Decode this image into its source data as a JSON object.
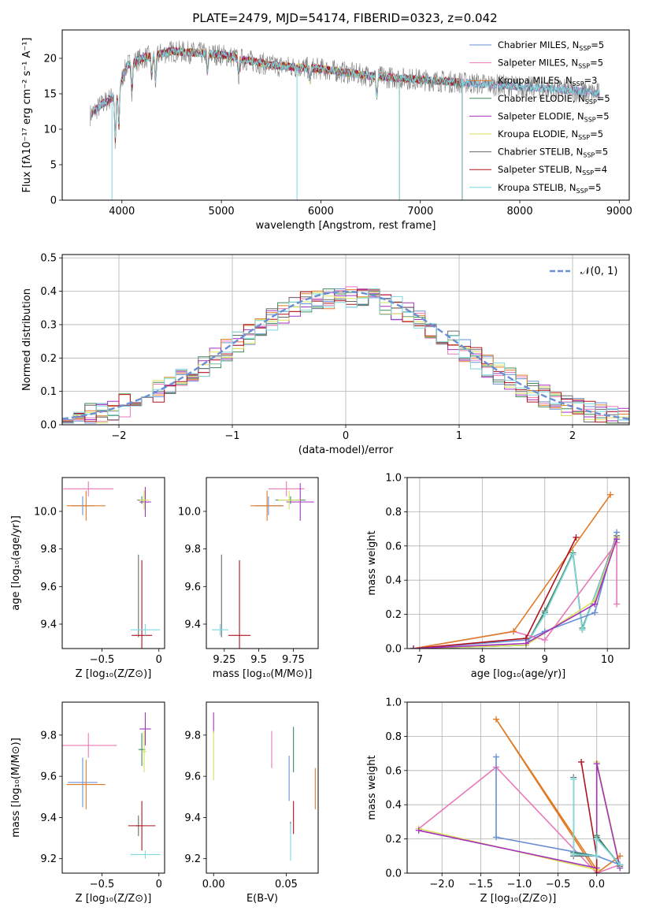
{
  "title": "PLATE=2479, MJD=54174, FIBERID=0323, z=0.042",
  "palette": [
    "#6a8fd4",
    "#e978b8",
    "#e07b25",
    "#3f8a5a",
    "#a531bd",
    "#d9e15a",
    "#6a6a6a",
    "#b0131f",
    "#7fd7e0"
  ],
  "ssp_models": [
    {
      "label": "Chabrier MILES, N",
      "nssp": "=5"
    },
    {
      "label": "Salpeter MILES, N",
      "nssp": "=5"
    },
    {
      "label": "Kroupa MILES, N",
      "nssp": "=3"
    },
    {
      "label": "Chabrier ELODIE, N",
      "nssp": "=5"
    },
    {
      "label": "Salpeter ELODIE, N",
      "nssp": "=5"
    },
    {
      "label": "Kroupa ELODIE, N",
      "nssp": "=5"
    },
    {
      "label": "Chabrier STELIB, N",
      "nssp": "=5"
    },
    {
      "label": "Salpeter STELIB, N",
      "nssp": "=4"
    },
    {
      "label": "Kroupa STELIB, N",
      "nssp": "=5"
    }
  ],
  "nssp_sub": "SSP",
  "chart_data": [
    {
      "id": "spectrum",
      "type": "line",
      "xlabel": "wavelength [Angstrom, rest frame]",
      "ylabel": "Flux [fλ10⁻¹⁷ erg cm⁻² s⁻¹ A⁻¹]",
      "xlim": [
        3400,
        9100
      ],
      "ylim": [
        0,
        24
      ],
      "xticks": [
        4000,
        5000,
        6000,
        7000,
        8000,
        9000
      ],
      "yticks": [
        0,
        5,
        10,
        15,
        20
      ],
      "continuum_anchors": [
        [
          3680,
          12
        ],
        [
          3800,
          13.5
        ],
        [
          3950,
          15
        ],
        [
          4050,
          19
        ],
        [
          4200,
          20
        ],
        [
          4500,
          21
        ],
        [
          5000,
          20.5
        ],
        [
          5500,
          19
        ],
        [
          6000,
          18.5
        ],
        [
          6500,
          17.5
        ],
        [
          7000,
          17
        ],
        [
          7500,
          16.5
        ],
        [
          8000,
          16
        ],
        [
          8500,
          15.5
        ],
        [
          8800,
          15
        ]
      ],
      "model_ranges": [
        [
          3700,
          8800
        ],
        [
          3700,
          8800
        ],
        [
          3700,
          7420
        ],
        [
          3700,
          7420
        ],
        [
          3700,
          6790
        ],
        [
          3900,
          6790
        ],
        [
          3700,
          8800
        ],
        [
          3700,
          7420
        ],
        [
          3700,
          8800
        ]
      ],
      "dropouts": [
        [
          3900,
          0
        ],
        [
          5760,
          0
        ],
        [
          6790,
          0
        ],
        [
          7420,
          0
        ]
      ]
    },
    {
      "id": "residuals",
      "type": "step-histogram",
      "xlabel": "(data-model)/error",
      "ylabel": "Normed distribution",
      "xlim": [
        -2.5,
        2.5
      ],
      "ylim": [
        0,
        0.51
      ],
      "xticks": [
        -2,
        -1,
        0,
        1,
        2
      ],
      "yticks": [
        0.0,
        0.1,
        0.2,
        0.3,
        0.4,
        0.5
      ],
      "bin_width": 0.1,
      "legend": "𝒩(0, 1)",
      "reference_curve": "gaussian",
      "reference_sigma": 1
    },
    {
      "id": "age_vs_Z",
      "type": "errorbar",
      "xlabel": "Z [log₁₀(Z/Z⊙)]",
      "ylabel": "age  [log₁₀(age/yr)]",
      "xlim": [
        -0.85,
        0.05
      ],
      "ylim": [
        9.27,
        10.18
      ],
      "xticks": [
        -0.5,
        0.0
      ],
      "yticks": [
        9.4,
        9.6,
        9.8,
        10.0
      ],
      "points": [
        {
          "x": -0.67,
          "y": 10.03,
          "xerr": 0.1,
          "yerr": 0.05,
          "c": 0
        },
        {
          "x": -0.62,
          "y": 10.12,
          "xerr": 0.22,
          "yerr": 0.04,
          "c": 1
        },
        {
          "x": -0.64,
          "y": 10.03,
          "xerr": 0.17,
          "yerr": 0.08,
          "c": 2
        },
        {
          "x": -0.15,
          "y": 10.06,
          "xerr": 0.04,
          "yerr": 0.02,
          "c": 3
        },
        {
          "x": -0.12,
          "y": 10.05,
          "xerr": 0.05,
          "yerr": 0.08,
          "c": 4
        },
        {
          "x": -0.13,
          "y": 10.06,
          "xerr": 0.04,
          "yerr": 0.05,
          "c": 5
        },
        {
          "x": -0.18,
          "y": 9.55,
          "xerr": 0.0,
          "yerr": 0.22,
          "c": 6
        },
        {
          "x": -0.15,
          "y": 9.34,
          "xerr": 0.09,
          "yerr": 0.4,
          "c": 7
        },
        {
          "x": -0.12,
          "y": 9.37,
          "xerr": 0.13,
          "yerr": 0.03,
          "c": 8
        }
      ]
    },
    {
      "id": "age_vs_mass",
      "type": "errorbar",
      "xlabel": "mass [log₁₀(M/M⊙)]",
      "ylabel": "",
      "xlim": [
        9.12,
        9.93
      ],
      "ylim": [
        9.27,
        10.18
      ],
      "xticks": [
        9.25,
        9.5,
        9.75
      ],
      "yticks": [
        9.4,
        9.6,
        9.8,
        10.0
      ],
      "points": [
        {
          "x": 9.57,
          "y": 10.03,
          "xerr": 0.1,
          "yerr": 0.05,
          "c": 0
        },
        {
          "x": 9.7,
          "y": 10.12,
          "xerr": 0.13,
          "yerr": 0.04,
          "c": 1
        },
        {
          "x": 9.56,
          "y": 10.03,
          "xerr": 0.12,
          "yerr": 0.08,
          "c": 2
        },
        {
          "x": 9.73,
          "y": 10.06,
          "xerr": 0.11,
          "yerr": 0.02,
          "c": 3
        },
        {
          "x": 9.8,
          "y": 10.05,
          "xerr": 0.1,
          "yerr": 0.1,
          "c": 4
        },
        {
          "x": 9.72,
          "y": 10.06,
          "xerr": 0.08,
          "yerr": 0.05,
          "c": 5
        },
        {
          "x": 9.23,
          "y": 9.55,
          "xerr": 0.0,
          "yerr": 0.22,
          "c": 6
        },
        {
          "x": 9.36,
          "y": 9.34,
          "xerr": 0.08,
          "yerr": 0.4,
          "c": 7
        },
        {
          "x": 9.22,
          "y": 9.37,
          "xerr": 0.06,
          "yerr": 0.03,
          "c": 8
        }
      ]
    },
    {
      "id": "weight_vs_age",
      "type": "line",
      "xlabel": "age  [log₁₀(age/yr)]",
      "ylabel": "mass weight",
      "xlim": [
        6.8,
        10.35
      ],
      "ylim": [
        0,
        1.0
      ],
      "xticks": [
        7,
        8,
        9,
        10
      ],
      "yticks": [
        0.0,
        0.2,
        0.4,
        0.6,
        0.8,
        1.0
      ],
      "series": [
        {
          "c": 6,
          "x": [
            6.9,
            8.7,
            9.0,
            9.45,
            9.6,
            10.15
          ],
          "y": [
            0.0,
            0.02,
            0.22,
            0.55,
            0.11,
            0.66
          ]
        },
        {
          "c": 3,
          "x": [
            6.9,
            8.7,
            9.0,
            9.45,
            9.6,
            10.15
          ],
          "y": [
            0.0,
            0.02,
            0.21,
            0.56,
            0.12,
            0.64
          ]
        },
        {
          "c": 8,
          "x": [
            6.9,
            8.7,
            9.0,
            9.45,
            9.6,
            10.15
          ],
          "y": [
            0.0,
            0.02,
            0.2,
            0.55,
            0.11,
            0.65
          ]
        },
        {
          "c": 0,
          "x": [
            6.9,
            8.7,
            9.0,
            9.8,
            10.15
          ],
          "y": [
            0.0,
            0.05,
            0.1,
            0.21,
            0.68
          ]
        },
        {
          "c": 1,
          "x": [
            6.9,
            8.5,
            9.0,
            10.15,
            10.15
          ],
          "y": [
            0.0,
            0.1,
            0.05,
            0.62,
            0.26
          ]
        },
        {
          "c": 2,
          "x": [
            6.9,
            8.5,
            10.05
          ],
          "y": [
            0.0,
            0.1,
            0.9
          ]
        },
        {
          "c": 7,
          "x": [
            6.9,
            8.7,
            9.5
          ],
          "y": [
            0.0,
            0.06,
            0.65
          ]
        },
        {
          "c": 5,
          "x": [
            6.9,
            8.7,
            9.8,
            10.15
          ],
          "y": [
            0.0,
            0.02,
            0.28,
            0.65
          ]
        },
        {
          "c": 4,
          "x": [
            6.9,
            8.7,
            9.8,
            10.15
          ],
          "y": [
            0.0,
            0.03,
            0.26,
            0.64
          ]
        }
      ]
    },
    {
      "id": "mass_vs_Z",
      "type": "errorbar",
      "xlabel": "Z [log₁₀(Z/Z⊙)]",
      "ylabel": "mass [log₁₀(M/M⊙)]",
      "xlim": [
        -0.85,
        0.05
      ],
      "ylim": [
        9.13,
        9.96
      ],
      "xticks": [
        -0.5,
        0.0
      ],
      "yticks": [
        9.2,
        9.4,
        9.6,
        9.8
      ],
      "points": [
        {
          "x": -0.67,
          "y": 9.57,
          "xerr": 0.13,
          "yerr": 0.12,
          "c": 0
        },
        {
          "x": -0.62,
          "y": 9.75,
          "xerr": 0.25,
          "yerr": 0.06,
          "c": 1
        },
        {
          "x": -0.64,
          "y": 9.56,
          "xerr": 0.17,
          "yerr": 0.12,
          "c": 2
        },
        {
          "x": -0.15,
          "y": 9.73,
          "xerr": 0.03,
          "yerr": 0.08,
          "c": 3
        },
        {
          "x": -0.12,
          "y": 9.83,
          "xerr": 0.05,
          "yerr": 0.08,
          "c": 4
        },
        {
          "x": -0.13,
          "y": 9.72,
          "xerr": 0.02,
          "yerr": 0.1,
          "c": 5
        },
        {
          "x": -0.18,
          "y": 9.36,
          "xerr": 0.02,
          "yerr": 0.05,
          "c": 6
        },
        {
          "x": -0.15,
          "y": 9.36,
          "xerr": 0.12,
          "yerr": 0.12,
          "c": 7
        },
        {
          "x": -0.12,
          "y": 9.22,
          "xerr": 0.13,
          "yerr": 0.02,
          "c": 8
        }
      ]
    },
    {
      "id": "mass_vs_ebv",
      "type": "errorbar",
      "xlabel": "E(B-V)",
      "ylabel": "",
      "xlim": [
        -0.005,
        0.072
      ],
      "ylim": [
        9.13,
        9.96
      ],
      "xticks": [
        0.0,
        0.05
      ],
      "yticks": [
        9.2,
        9.4,
        9.6,
        9.8
      ],
      "points": [
        {
          "x": 0.052,
          "y": 9.59,
          "xerr": 0.0,
          "yerr": 0.11,
          "c": 0
        },
        {
          "x": 0.04,
          "y": 9.73,
          "xerr": 0.0,
          "yerr": 0.09,
          "c": 1
        },
        {
          "x": 0.07,
          "y": 9.54,
          "xerr": 0.0,
          "yerr": 0.1,
          "c": 2
        },
        {
          "x": 0.055,
          "y": 9.73,
          "xerr": 0.0,
          "yerr": 0.11,
          "c": 3
        },
        {
          "x": 0.0,
          "y": 9.86,
          "xerr": 0.0,
          "yerr": 0.05,
          "c": 4
        },
        {
          "x": 0.0,
          "y": 9.7,
          "xerr": 0.0,
          "yerr": 0.12,
          "c": 5
        },
        {
          "x": 0.053,
          "y": 9.35,
          "xerr": 0.0,
          "yerr": 0.03,
          "c": 6
        },
        {
          "x": 0.055,
          "y": 9.4,
          "xerr": 0.0,
          "yerr": 0.08,
          "c": 7
        },
        {
          "x": 0.053,
          "y": 9.28,
          "xerr": 0.0,
          "yerr": 0.09,
          "c": 8
        }
      ]
    },
    {
      "id": "weight_vs_Z",
      "type": "line",
      "xlabel": "Z [log₁₀(Z/Z⊙)]",
      "ylabel": "mass weight",
      "xlim": [
        -2.45,
        0.42
      ],
      "ylim": [
        0,
        1.0
      ],
      "xticks": [
        -2.0,
        -1.5,
        -1.0,
        -0.5,
        0.0
      ],
      "yticks": [
        0.0,
        0.2,
        0.4,
        0.6,
        0.8,
        1.0
      ],
      "series": [
        {
          "c": 2,
          "x": [
            0.3,
            0.0,
            -1.3,
            0.0
          ],
          "y": [
            0.1,
            0.0,
            0.9,
            0.02
          ]
        },
        {
          "c": 1,
          "x": [
            -2.3,
            -1.3,
            0.0,
            0.3
          ],
          "y": [
            0.26,
            0.62,
            0.0,
            0.05
          ]
        },
        {
          "c": 0,
          "x": [
            -1.3,
            -1.3,
            0.0,
            0.3
          ],
          "y": [
            0.68,
            0.21,
            0.1,
            0.05
          ]
        },
        {
          "c": 5,
          "x": [
            -2.3,
            0.0,
            0.0,
            0.3
          ],
          "y": [
            0.26,
            0.02,
            0.65,
            0.04
          ]
        },
        {
          "c": 4,
          "x": [
            -2.3,
            0.0,
            0.0,
            0.3
          ],
          "y": [
            0.25,
            0.03,
            0.64,
            0.03
          ]
        },
        {
          "c": 7,
          "x": [
            -0.2,
            0.0,
            0.0
          ],
          "y": [
            0.65,
            0.1,
            0.0
          ]
        },
        {
          "c": 6,
          "x": [
            -0.3,
            -0.3,
            0.0,
            0.0,
            0.3
          ],
          "y": [
            0.56,
            0.1,
            0.1,
            0.22,
            0.04
          ]
        },
        {
          "c": 3,
          "x": [
            -0.3,
            -0.3,
            0.0,
            0.0,
            0.3
          ],
          "y": [
            0.55,
            0.12,
            0.1,
            0.21,
            0.05
          ]
        },
        {
          "c": 8,
          "x": [
            -0.3,
            -0.3,
            0.0,
            0.0,
            0.3
          ],
          "y": [
            0.55,
            0.11,
            0.1,
            0.2,
            0.05
          ]
        }
      ]
    }
  ]
}
